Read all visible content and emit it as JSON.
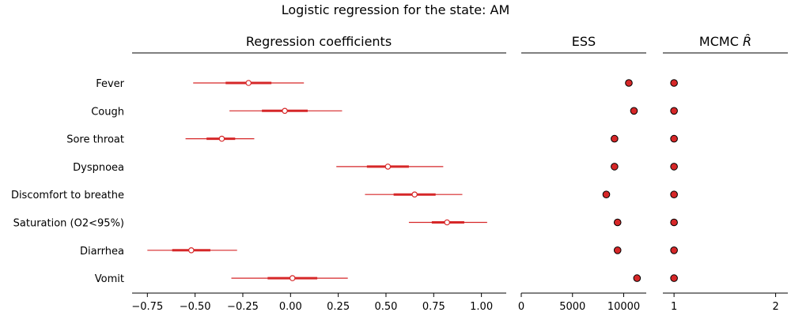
{
  "title": "Logistic regression for the state: AM",
  "colors": {
    "accent": "#d62728",
    "marker_edge": "#000000"
  },
  "chart_data": [
    {
      "type": "forest",
      "title": "Regression coefficients",
      "categories": [
        "Fever",
        "Cough",
        "Sore throat",
        "Dyspnoea",
        "Discomfort to breathe",
        "Saturation (O2<95%)",
        "Diarrhea",
        "Vomit"
      ],
      "mean": [
        -0.22,
        -0.03,
        -0.36,
        0.51,
        0.65,
        0.82,
        -0.52,
        0.01
      ],
      "hdi_50": [
        [
          -0.34,
          -0.1
        ],
        [
          -0.15,
          0.09
        ],
        [
          -0.44,
          -0.29
        ],
        [
          0.4,
          0.62
        ],
        [
          0.54,
          0.76
        ],
        [
          0.74,
          0.91
        ],
        [
          -0.62,
          -0.42
        ],
        [
          -0.12,
          0.14
        ]
      ],
      "hdi_94": [
        [
          -0.51,
          0.07
        ],
        [
          -0.32,
          0.27
        ],
        [
          -0.55,
          -0.19
        ],
        [
          0.24,
          0.8
        ],
        [
          0.39,
          0.9
        ],
        [
          0.62,
          1.03
        ],
        [
          -0.75,
          -0.28
        ],
        [
          -0.31,
          0.3
        ]
      ],
      "xlim": [
        -0.83,
        1.13
      ],
      "xticks": [
        -0.75,
        -0.5,
        -0.25,
        0.0,
        0.25,
        0.5,
        0.75,
        1.0
      ],
      "xtick_labels": [
        "−0.75",
        "−0.50",
        "−0.25",
        "0.00",
        "0.25",
        "0.50",
        "0.75",
        "1.00"
      ]
    },
    {
      "type": "scatter",
      "title": "ESS",
      "values": [
        10500,
        11000,
        9100,
        9100,
        8300,
        9400,
        9400,
        11300
      ],
      "xlim": [
        0,
        12200
      ],
      "xticks": [
        0,
        5000,
        10000
      ],
      "xtick_labels": [
        "0",
        "5000",
        "10000"
      ]
    },
    {
      "type": "scatter",
      "title": "MCMC R̂",
      "title_main": "MCMC ",
      "title_symbol": "R̂",
      "values": [
        1.0,
        1.0,
        1.0,
        1.0,
        1.0,
        1.0,
        1.0,
        1.0
      ],
      "xlim": [
        0.89,
        2.12
      ],
      "xticks": [
        1,
        2
      ],
      "xtick_labels": [
        "1",
        "2"
      ]
    }
  ]
}
